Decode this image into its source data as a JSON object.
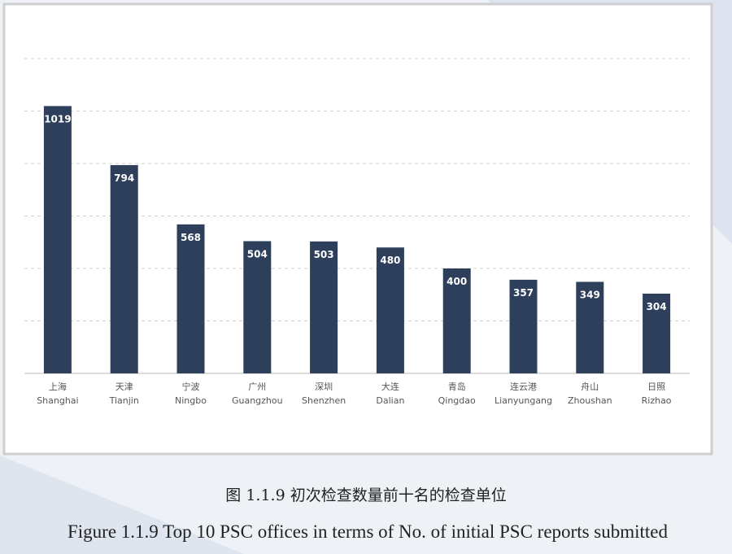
{
  "chart_data": {
    "type": "bar",
    "categories": [
      "上海",
      "天津",
      "宁波",
      "广州",
      "深圳",
      "大连",
      "青岛",
      "连云港",
      "舟山",
      "日照"
    ],
    "categories_en": [
      "Shanghai",
      "Tianjin",
      "Ningbo",
      "Guangzhou",
      "Shenzhen",
      "Dalian",
      "Qingdao",
      "Lianyungang",
      "Zhoushan",
      "Rizhao"
    ],
    "values": [
      1019,
      794,
      568,
      504,
      503,
      480,
      400,
      357,
      349,
      304
    ],
    "color": "#2e3f5c",
    "ylim": [
      0,
      1200
    ],
    "yticks": [
      200,
      400,
      600,
      800,
      1000,
      1200
    ],
    "grid": true,
    "caption_cn": "图 1.1.9 初次检查数量前十名的检查单位",
    "caption_en": "Figure 1.1.9 Top 10 PSC offices in terms of No. of initial PSC reports submitted"
  }
}
